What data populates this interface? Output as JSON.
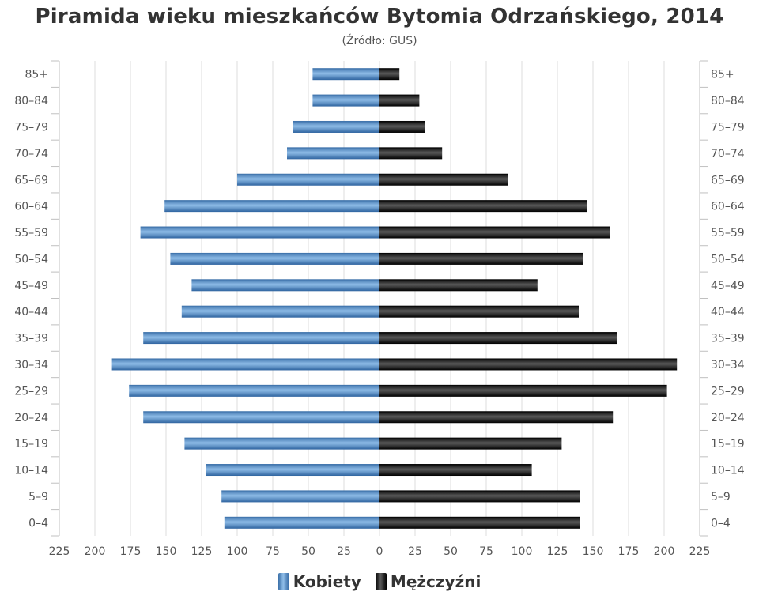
{
  "chart_data": {
    "type": "bar",
    "orientation": "horizontal",
    "title": "Piramida wieku mieszkańców Bytomia Odrzańskiego, 2014",
    "subtitle": "(Źródło: GUS)",
    "categories": [
      "85+",
      "80–84",
      "75–79",
      "70–74",
      "65–69",
      "60–64",
      "55–59",
      "50–54",
      "45–49",
      "40–44",
      "35–39",
      "30–34",
      "25–29",
      "20–24",
      "15–19",
      "10–14",
      "5–9",
      "0–4"
    ],
    "series": [
      {
        "name": "Kobiety",
        "side": "left",
        "color": "#4a86c5",
        "values": [
          47,
          47,
          61,
          65,
          100,
          151,
          168,
          147,
          132,
          139,
          166,
          188,
          176,
          166,
          137,
          122,
          111,
          109
        ]
      },
      {
        "name": "Mężczyźni",
        "side": "right",
        "color": "#1a1a1a",
        "values": [
          14,
          28,
          32,
          44,
          90,
          146,
          162,
          143,
          111,
          140,
          167,
          209,
          202,
          164,
          128,
          107,
          141,
          141
        ]
      }
    ],
    "x_ticks": [
      "225",
      "200",
      "175",
      "150",
      "125",
      "100",
      "75",
      "50",
      "25",
      "0",
      "25",
      "50",
      "75",
      "100",
      "125",
      "150",
      "175",
      "200",
      "225"
    ],
    "xlim": [
      -225,
      225
    ],
    "grid": true,
    "legend_position": "bottom"
  }
}
